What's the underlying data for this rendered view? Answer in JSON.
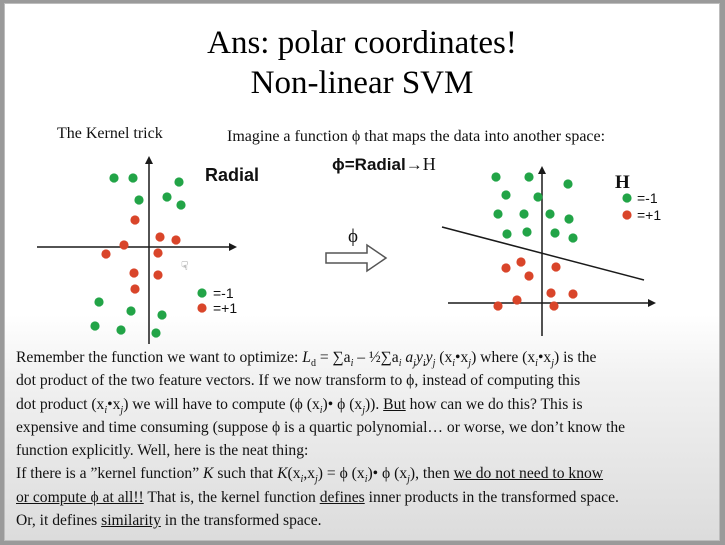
{
  "title_line1": "Ans: polar coordinates!",
  "title_line2": "Non-linear SVM",
  "kernel_trick_label": "The Kernel trick",
  "imagine_text": "Imagine a function ϕ that maps the data into another space:",
  "radial_label": "Radial",
  "phi_equation": {
    "left": "ϕ=Radial",
    "arrow": "→",
    "right": "H"
  },
  "phi_arrow_label": "ϕ",
  "H_label": "H",
  "legend_left": [
    {
      "symbol": "green-dot",
      "label": "=-1",
      "color": "#22a447"
    },
    {
      "symbol": "red-dot",
      "label": "=+1",
      "color": "#d9452a"
    }
  ],
  "legend_right": [
    {
      "symbol": "green-dot",
      "label": "=-1",
      "color": "#22a447"
    },
    {
      "symbol": "red-dot",
      "label": "=+1",
      "color": "#d9452a"
    }
  ],
  "colors": {
    "green": "#22a447",
    "red": "#d9452a",
    "axis": "#1a1a1a"
  },
  "body": {
    "l1a": "Remember the function we want to optimize: ",
    "l1_formula": "L",
    "l1_sub_d": "d",
    "l1_eq": " = ∑a",
    "l1_i1": "i",
    "l1_minus": " – ½∑a",
    "l1_i2": "i",
    "l1_a": " a",
    "l1_j": "j",
    "l1_y": "y",
    "l1_yi": "i",
    "l1_y2": "y",
    "l1_yj": "j",
    "l1_x": " (x",
    "l1_xi": "i",
    "l1_dot": "•x",
    "l1_xj": "j",
    "l1_close": ")",
    "l1_where": " where (x",
    "l1_wi": "i",
    "l1_wdot": "•x",
    "l1_wj": "j",
    "l1_end": ") is the",
    "l2": "dot product of the two feature vectors. If we now transform to ϕ, instead of computing this",
    "l3a": "dot product (x",
    "l3_i": "i",
    "l3_dot": "•x",
    "l3_j": "j",
    "l3b": ") we will have to compute (ϕ (x",
    "l3_i2": "i",
    "l3c": ")• ϕ (x",
    "l3_j2": "j",
    "l3d": ")).  ",
    "l3_but": "But",
    "l3e": " how can we do this?  This is",
    "l4": "expensive and time consuming (suppose ϕ is a quartic polynomial… or worse, we don’t know the",
    "l5": "function explicitly.  Well, here is the neat thing:",
    "l6a": "If there is a ”kernel function” ",
    "l6_K": "K",
    "l6b": " such that ",
    "l6_K2": "K",
    "l6c": "(x",
    "l6_i": "i",
    "l6d": ",x",
    "l6_j": "j",
    "l6e": ") = ϕ (x",
    "l6_i2": "i",
    "l6f": ")• ϕ (x",
    "l6_j2": "j",
    "l6g": "), then ",
    "l6_u": "we do not need to know",
    "l7_u": "or compute ϕ at all!!",
    "l7a": "  That is, the kernel function ",
    "l7_defines": "defines",
    "l7b": " inner products in the transformed space.",
    "l8a": "Or, it defines ",
    "l8_sim": "similarity",
    "l8b": " in the transformed space."
  }
}
